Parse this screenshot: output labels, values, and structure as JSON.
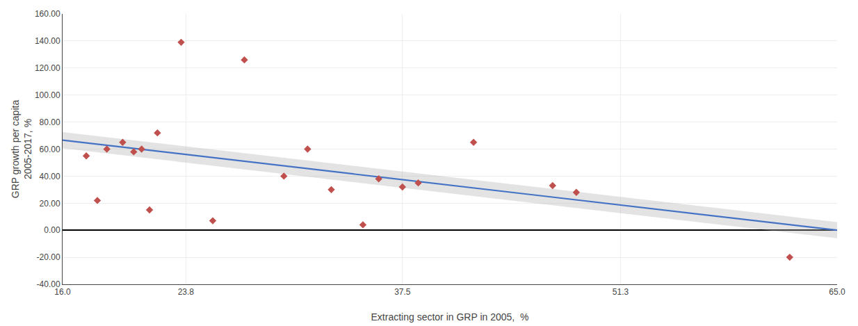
{
  "chart_data": {
    "type": "scatter",
    "xlabel": "Extracting sector in GRP in 2005,  %",
    "ylabel": "GRP growth per capita\n2005-2017, %",
    "xlim": [
      16.0,
      65.0
    ],
    "ylim": [
      -40.0,
      160.0
    ],
    "xticks": [
      {
        "value": 16.0,
        "label": "16.0"
      },
      {
        "value": 23.8,
        "label": "23.8"
      },
      {
        "value": 37.5,
        "label": "37.5"
      },
      {
        "value": 51.3,
        "label": "51.3"
      },
      {
        "value": 65.0,
        "label": "65.0"
      }
    ],
    "yticks": [
      {
        "value": -40.0,
        "label": "-40.00"
      },
      {
        "value": -20.0,
        "label": "-20.00"
      },
      {
        "value": 0.0,
        "label": "0.00"
      },
      {
        "value": 20.0,
        "label": "20.00"
      },
      {
        "value": 40.0,
        "label": "40.00"
      },
      {
        "value": 60.0,
        "label": "60.00"
      },
      {
        "value": 80.0,
        "label": "80.00"
      },
      {
        "value": 100.0,
        "label": "100.00"
      },
      {
        "value": 120.0,
        "label": "120.00"
      },
      {
        "value": 140.0,
        "label": "140.00"
      },
      {
        "value": 160.0,
        "label": "160.00"
      }
    ],
    "grid": true,
    "series": [
      {
        "type": "scatter",
        "marker": "diamond",
        "color": "#c0504d",
        "x": [
          17.5,
          18.2,
          18.8,
          19.8,
          20.5,
          21.0,
          21.5,
          22.0,
          23.5,
          25.5,
          27.5,
          30.0,
          31.5,
          33.0,
          35.0,
          36.0,
          37.5,
          38.5,
          42.0,
          47.0,
          48.5,
          62.0
        ],
        "values": [
          55.0,
          22.0,
          60.0,
          65.0,
          58.0,
          60.0,
          15.0,
          72.0,
          139.0,
          7.0,
          126.0,
          40.0,
          60.0,
          30.0,
          4.0,
          38.0,
          32.0,
          35.0,
          65.0,
          33.0,
          28.0,
          -20.0
        ]
      },
      {
        "type": "area",
        "color": "#b0b0b0",
        "x": [
          16.0,
          65.0
        ],
        "lower": [
          60.603,
          -5.967
        ],
        "upper": [
          72.603,
          6.033
        ]
      },
      {
        "type": "line",
        "color": "#4472c4",
        "x": [
          16.0,
          65.0
        ],
        "values": [
          66.603,
          0.033
        ]
      }
    ]
  }
}
